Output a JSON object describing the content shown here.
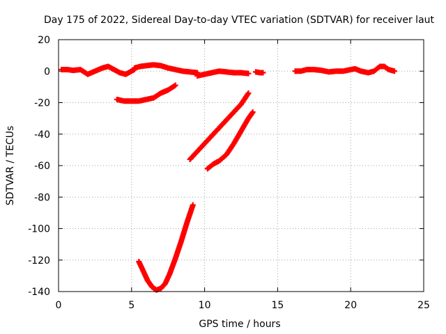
{
  "chart_data": {
    "type": "scatter",
    "title": "Day 175 of 2022, Sidereal Day-to-day VTEC variation (SDTVAR) for receiver laut",
    "xlabel": "GPS time / hours",
    "ylabel": "SDTVAR / TECUs",
    "xlim": [
      0,
      25
    ],
    "ylim": [
      -140,
      20
    ],
    "xticks": [
      0,
      5,
      10,
      15,
      20,
      25
    ],
    "yticks": [
      20,
      0,
      -20,
      -40,
      -60,
      -80,
      -100,
      -120,
      -140
    ],
    "grid": true,
    "marker_color": "#ff0000",
    "series": [
      {
        "name": "arc-main-1",
        "points": [
          [
            0.2,
            1
          ],
          [
            0.6,
            1
          ],
          [
            1.0,
            0.5
          ],
          [
            1.5,
            1
          ],
          [
            2.0,
            -2
          ],
          [
            2.5,
            0
          ],
          [
            3.0,
            2
          ],
          [
            3.4,
            3
          ],
          [
            3.8,
            1
          ],
          [
            4.2,
            -1
          ],
          [
            4.6,
            -2
          ],
          [
            5.0,
            0
          ],
          [
            5.2,
            1
          ]
        ]
      },
      {
        "name": "arc-main-2",
        "points": [
          [
            5.2,
            2
          ],
          [
            5.6,
            3
          ],
          [
            6.0,
            3.5
          ],
          [
            6.5,
            4
          ],
          [
            7.0,
            3.5
          ],
          [
            7.5,
            2
          ],
          [
            8.0,
            1
          ],
          [
            8.5,
            0
          ],
          [
            9.0,
            -0.5
          ],
          [
            9.5,
            -1
          ]
        ]
      },
      {
        "name": "arc-main-3",
        "points": [
          [
            9.5,
            -3
          ],
          [
            10.0,
            -2
          ],
          [
            10.5,
            -1
          ],
          [
            11.0,
            0
          ],
          [
            11.5,
            -0.5
          ],
          [
            12.0,
            -1
          ],
          [
            12.5,
            -1
          ],
          [
            13.0,
            -1.5
          ]
        ]
      },
      {
        "name": "arc-main-4",
        "points": [
          [
            13.5,
            -0.5
          ],
          [
            13.8,
            -1
          ],
          [
            14.0,
            -1
          ]
        ]
      },
      {
        "name": "arc-main-5",
        "points": [
          [
            16.2,
            0
          ],
          [
            16.6,
            0
          ],
          [
            17.0,
            1
          ],
          [
            17.5,
            1
          ],
          [
            18.0,
            0.5
          ],
          [
            18.5,
            -0.5
          ],
          [
            19.0,
            0
          ],
          [
            19.5,
            0
          ],
          [
            20.0,
            1
          ],
          [
            20.3,
            1.5
          ],
          [
            20.7,
            0
          ],
          [
            21.2,
            -1
          ],
          [
            21.6,
            0
          ],
          [
            22.0,
            3
          ],
          [
            22.3,
            3
          ],
          [
            22.6,
            1
          ],
          [
            23.0,
            0
          ]
        ]
      },
      {
        "name": "arc-a",
        "points": [
          [
            4.0,
            -18
          ],
          [
            4.5,
            -19
          ],
          [
            5.0,
            -19
          ],
          [
            5.5,
            -19
          ],
          [
            6.0,
            -18
          ],
          [
            6.5,
            -17
          ],
          [
            7.0,
            -14
          ],
          [
            7.5,
            -12
          ],
          [
            8.0,
            -9
          ]
        ]
      },
      {
        "name": "arc-b",
        "points": [
          [
            9.0,
            -56
          ],
          [
            9.5,
            -51
          ],
          [
            10.0,
            -46
          ],
          [
            10.5,
            -41
          ],
          [
            11.0,
            -36
          ],
          [
            11.5,
            -31
          ],
          [
            12.0,
            -26
          ],
          [
            12.5,
            -21
          ],
          [
            13.0,
            -14
          ]
        ]
      },
      {
        "name": "arc-c",
        "points": [
          [
            10.2,
            -62
          ],
          [
            10.6,
            -59
          ],
          [
            11.0,
            -57
          ],
          [
            11.5,
            -53
          ],
          [
            12.0,
            -46
          ],
          [
            12.5,
            -38
          ],
          [
            13.0,
            -30
          ],
          [
            13.3,
            -26
          ]
        ]
      },
      {
        "name": "arc-d",
        "points": [
          [
            5.5,
            -121
          ],
          [
            5.8,
            -127
          ],
          [
            6.1,
            -133
          ],
          [
            6.4,
            -137
          ],
          [
            6.7,
            -139
          ],
          [
            7.0,
            -138
          ],
          [
            7.3,
            -135
          ],
          [
            7.6,
            -129
          ],
          [
            8.0,
            -119
          ],
          [
            8.4,
            -108
          ],
          [
            8.8,
            -96
          ],
          [
            9.2,
            -85
          ]
        ]
      }
    ]
  }
}
